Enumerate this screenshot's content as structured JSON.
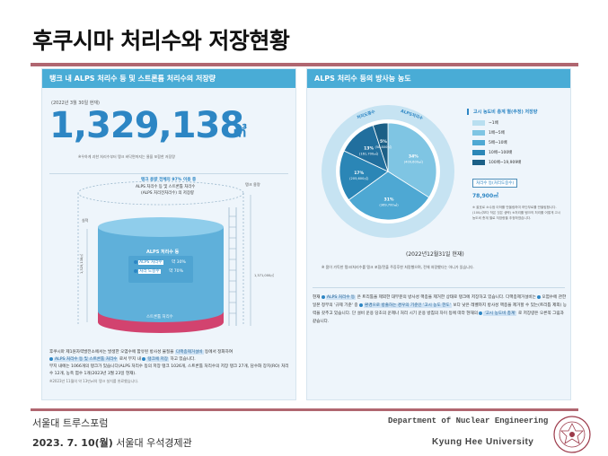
{
  "slide": {
    "title": "후쿠시마 처리수와 저장현황"
  },
  "left_panel": {
    "header": "탱크 내 ALPS 처리수 등 및 스트론튬 처리수의 저장량",
    "date": "(2022년 3월 30일 현재)",
    "big_number": "1,329,138",
    "unit": "㎥",
    "note": "※우하게 괴한 처리수부터 탱크 바닥면까지는 물을 포함한 저장량",
    "tank": {
      "top_label_1": "탱크 용량 전체의 97% 이용 중",
      "top_label_2": "ALPS 처리수 등 및 스트론튬 처리수",
      "top_label_3": "(ALPS 처리전처리수) 의 저장량",
      "side_label": "탱크 용량",
      "left_side_label": "실적",
      "left_volume": "1,329,138㎥",
      "right_volume": "1,371,000㎥",
      "inner_title": "ALPS 처리수 등",
      "row1_label": "ALPS 처리수",
      "row1_value": "약 30%",
      "row2_label": "처리 도중수",
      "row2_value": "약 70%",
      "strontium_label": "스트론튬 처리수"
    },
    "body_text": [
      "후쿠시마 제1원자력발전소에서는 발생한 오염수에 함유된 방사성 물질을",
      "다핵종제거설비",
      "등에서 정화하여",
      "ALPS 처리수 등 및 스트론튬 처리수",
      "로서 부지 내",
      "탱크에 저장",
      "하고 있습니다.",
      "부지 내에는 1066개의 탱크가 있습니다(ALPS 처리수 등의 저장 탱크 1026개, 스트론튬 처리수의 저장 탱크 27개, 담수화 장치(RO) 처리수 12개, 농축 염수 1개(2023년 3월 23일 현재).",
      "※2023년 11월의 약 13만㎥의 탱크 설치를 완료했습니다."
    ]
  },
  "right_panel": {
    "header": "ALPS 처리수 등의 방사능 농도",
    "pie": {
      "center_labels": [
        "처리도중수",
        "ALPS처리수"
      ],
      "date": "(2022년12월31일 현재)",
      "note": "※ 몸이 가득한 탱크/처리수를 탱크 포함/전출 주증후한 처랑했으며, 전체 처랑했다는 아니가 있습니다."
    },
    "legend": {
      "title": "고시 농도비 총계 별(추정) 저장량",
      "items": [
        {
          "label": "~1배",
          "color": "#b9dff0"
        },
        {
          "label": "1배~5배",
          "color": "#7fc5e3"
        },
        {
          "label": "5배~10배",
          "color": "#4ea8d3"
        },
        {
          "label": "10배~100배",
          "color": "#2b86b6"
        },
        {
          "label": "100배~19,909배",
          "color": "#1b5f86"
        }
      ],
      "total_label": "처리수 등(처리도중수)",
      "total_value": "78,900㎥",
      "notes": "※ 괄호로 소수점 이하를 반올림하여 하단부로를 반올림합니다. (100㎥보다 작은 것은 생략) ※처리를 탱크의 처리를 어떻게 고시 농도비 총계 별로 저장량을 추정하였습니다."
    },
    "body_text": [
      "현재",
      "ALPS 처리수 등",
      "은 트리튬을 제외한 대부분의 방사성 핵종을 제거한 상태로 탱크에 저장하고 있습니다.",
      "다핵종제거설비는",
      "오염수에 관한 일본 정부의 '규제 기준' 중",
      "환경으로 방출하는 경우의 기준인 '고시 농도 한도'",
      "보다 낮은 레벨까지 방사성 핵종을 제거할 수 있는(트리튬 제외) 능력을 갖추고 있습니다. 단 설비 운용 당초의 운제나 처리 시기 운용 방침의 차이 등에 따라 현재의",
      "'고시 농도비 총계'",
      "로 저장량은 오른쪽 그림과 같습니다."
    ]
  },
  "chart_data": {
    "type": "pie",
    "title": "ALPS 처리수 등의 방사능 농도",
    "slices": [
      {
        "label": "~1배",
        "percent": 34,
        "value_text": "(409,600㎥)",
        "color": "#7fc5e3"
      },
      {
        "label": "1배~5배",
        "percent": 31,
        "value_text": "(369,700㎥)",
        "color": "#4ea8d3"
      },
      {
        "label": "5배~10배",
        "percent": 17,
        "value_text": "(205,600㎥)",
        "color": "#2b86b6"
      },
      {
        "label": "10배~100배",
        "percent": 13,
        "value_text": "(161,700㎥)",
        "color": "#216f9e"
      },
      {
        "label": "100배~19,909배",
        "percent": 5,
        "value_text": "(58,800㎥)",
        "color": "#1b5f86"
      }
    ],
    "ring_labels": [
      "처리도중수",
      "ALPS처리수"
    ]
  },
  "footer": {
    "org": "서울대 트루스포럼",
    "date_bold": "2023. 7. 10(월)",
    "venue": " 서울대 우석경제관",
    "dept": "Department of Nuclear Engineering",
    "university": "Kyung Hee University"
  }
}
